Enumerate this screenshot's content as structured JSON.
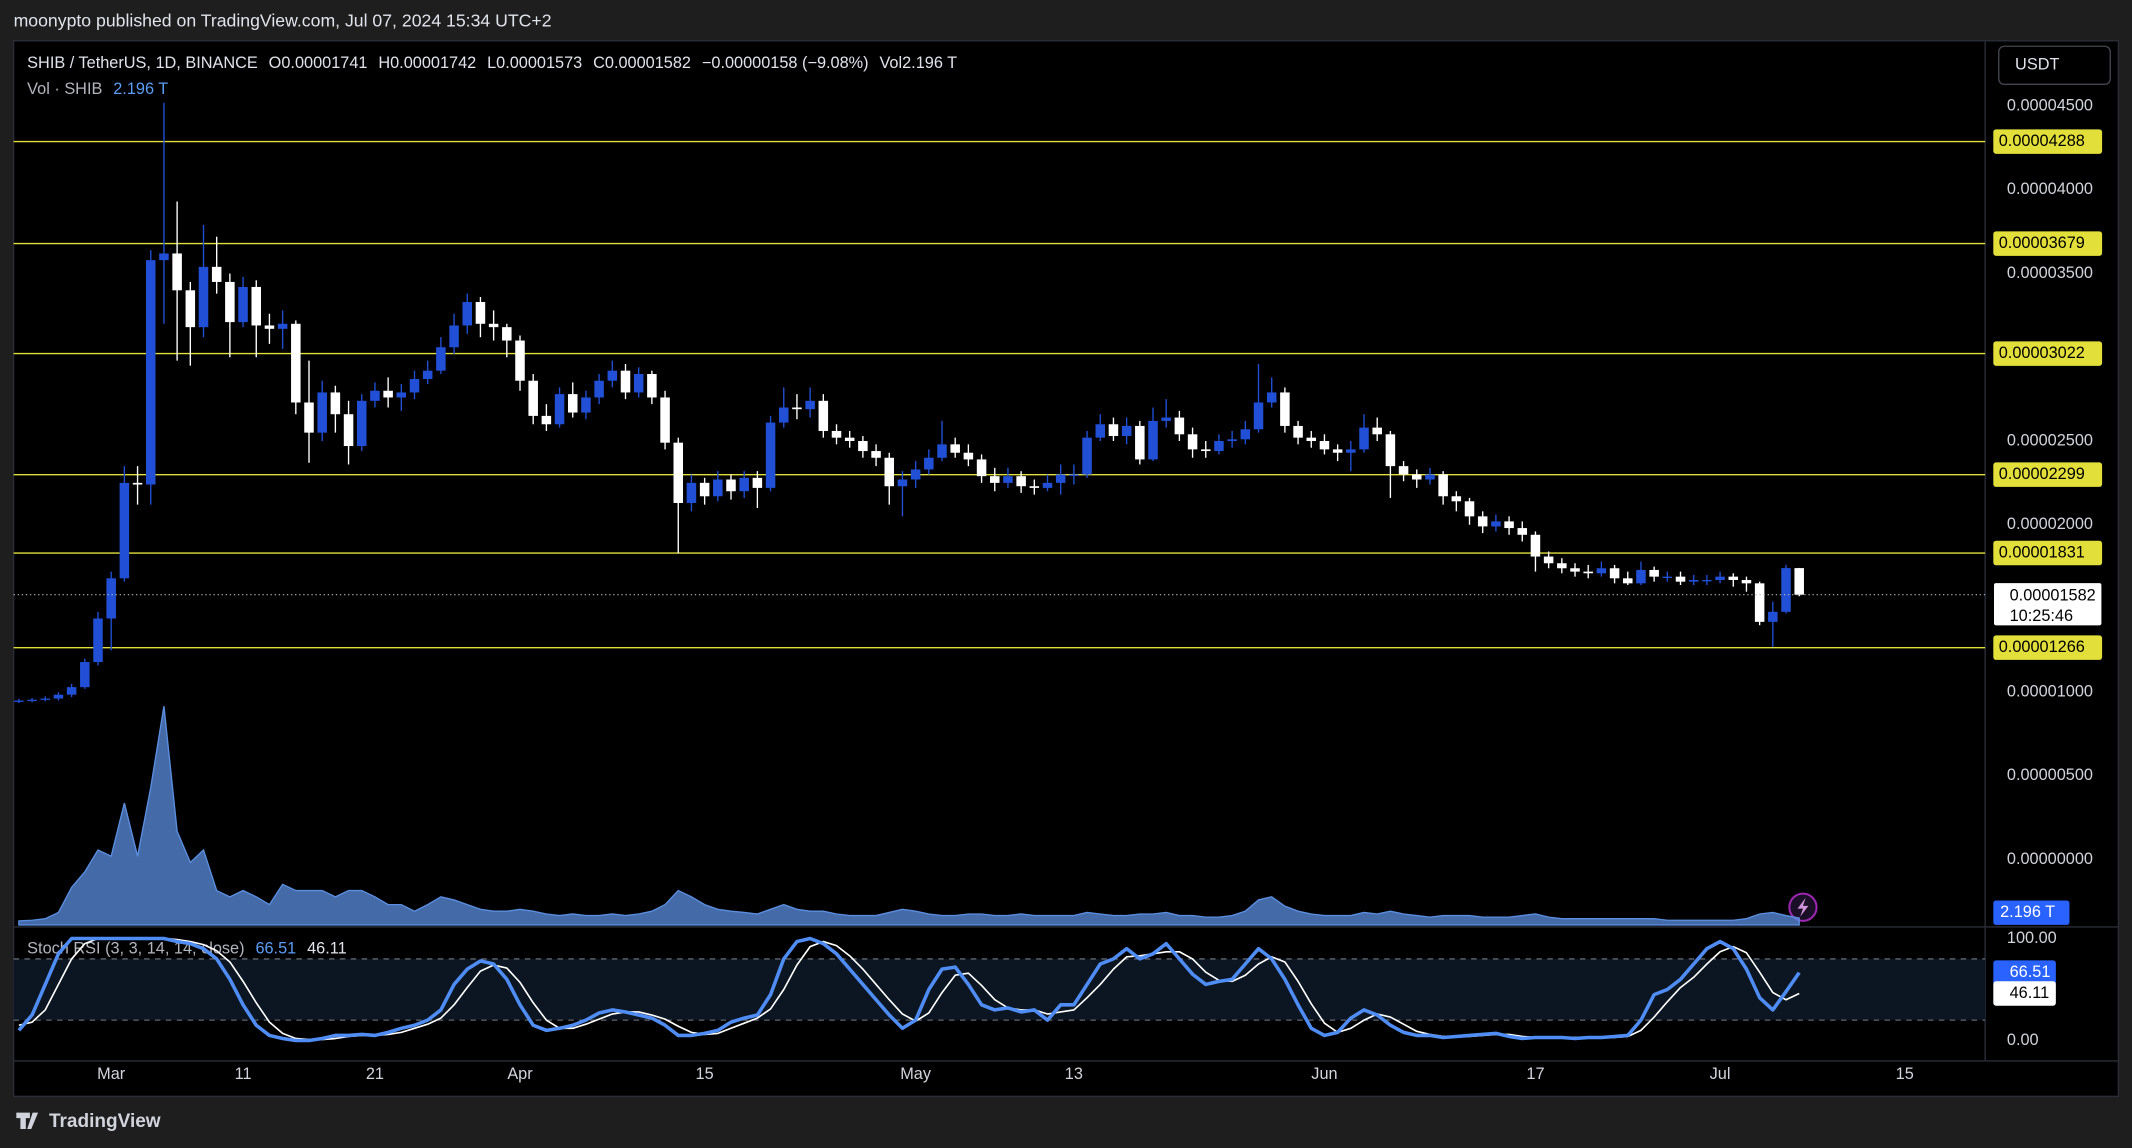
{
  "header": {
    "published": "moonypto published on TradingView.com, Jul 07, 2024 15:34 UTC+2",
    "brand": "TradingView"
  },
  "chart_data": {
    "type": "candlestick",
    "symbol": "SHIB / TetherUS, 1D, BINANCE",
    "legend": [
      {
        "key": "O",
        "value": "0.00001741"
      },
      {
        "key": "H",
        "value": "0.00001742"
      },
      {
        "key": "L",
        "value": "0.00001573"
      },
      {
        "key": "C",
        "value": "0.00001582"
      }
    ],
    "change": "−0.00000158 (−9.08%)",
    "vol_key": "Vol",
    "vol_value": "2.196 T",
    "currency": "USDT",
    "up_color": "#2150d6",
    "down_color": "#ffffff",
    "xlim": [
      -0.4,
      149.1
    ],
    "xticks": [
      {
        "value": 7,
        "label": "Mar"
      },
      {
        "value": 17,
        "label": "11"
      },
      {
        "value": 27,
        "label": "21"
      },
      {
        "value": 38,
        "label": "Apr"
      },
      {
        "value": 52,
        "label": "15"
      },
      {
        "value": 68,
        "label": "May"
      },
      {
        "value": 80,
        "label": "13"
      },
      {
        "value": 99,
        "label": "Jun"
      },
      {
        "value": 115,
        "label": "17"
      },
      {
        "value": 129,
        "label": "Jul"
      },
      {
        "value": 143,
        "label": "15"
      }
    ],
    "ylim": [
      -3.9e-06,
      4.89e-05
    ],
    "yticks": [
      {
        "value": 4.5e-05,
        "label": "0.00004500"
      },
      {
        "value": 4e-05,
        "label": "0.00004000"
      },
      {
        "value": 3.5e-05,
        "label": "0.00003500"
      },
      {
        "value": 2.5e-05,
        "label": "0.00002500"
      },
      {
        "value": 2e-05,
        "label": "0.00002000"
      },
      {
        "value": 1e-05,
        "label": "0.00001000"
      },
      {
        "value": 5e-06,
        "label": "0.00000500"
      },
      {
        "value": 0,
        "label": "0.00000000"
      }
    ],
    "levels": [
      4.288e-05,
      3.679e-05,
      3.022e-05,
      2.299e-05,
      1.831e-05,
      1.266e-05
    ],
    "level_color": "#e3df3a",
    "countdown": "10:25:46",
    "open": [
      9.45e-06,
      9.5e-06,
      9.55e-06,
      9.62e-06,
      9.85e-06,
      1.03e-05,
      1.18e-05,
      1.44e-05,
      1.68e-05,
      2.25e-05,
      2.24e-05,
      3.58e-05,
      3.62e-05,
      3.4e-05,
      3.18e-05,
      3.54e-05,
      3.45e-05,
      3.21e-05,
      3.42e-05,
      3.19e-05,
      3.17e-05,
      3.2e-05,
      2.73e-05,
      2.55e-05,
      2.79e-05,
      2.66e-05,
      2.47e-05,
      2.74e-05,
      2.8e-05,
      2.76e-05,
      2.79e-05,
      2.87e-05,
      2.92e-05,
      3.06e-05,
      3.19e-05,
      3.33e-05,
      3.2e-05,
      3.18e-05,
      3.1e-05,
      2.86e-05,
      2.65e-05,
      2.6e-05,
      2.78e-05,
      2.67e-05,
      2.76e-05,
      2.86e-05,
      2.92e-05,
      2.79e-05,
      2.9e-05,
      2.76e-05,
      2.49e-05,
      2.13e-05,
      2.25e-05,
      2.17e-05,
      2.27e-05,
      2.2e-05,
      2.28e-05,
      2.22e-05,
      2.61e-05,
      2.7e-05,
      2.69e-05,
      2.74e-05,
      2.56e-05,
      2.52e-05,
      2.5e-05,
      2.44e-05,
      2.4e-05,
      2.23e-05,
      2.27e-05,
      2.33e-05,
      2.4e-05,
      2.48e-05,
      2.43e-05,
      2.39e-05,
      2.29e-05,
      2.25e-05,
      2.29e-05,
      2.23e-05,
      2.22e-05,
      2.25e-05,
      2.3e-05,
      2.3e-05,
      2.52e-05,
      2.6e-05,
      2.53e-05,
      2.59e-05,
      2.39e-05,
      2.62e-05,
      2.64e-05,
      2.54e-05,
      2.45e-05,
      2.44e-05,
      2.5e-05,
      2.51e-05,
      2.57e-05,
      2.73e-05,
      2.79e-05,
      2.59e-05,
      2.52e-05,
      2.5e-05,
      2.45e-05,
      2.43e-05,
      2.45e-05,
      2.58e-05,
      2.54e-05,
      2.35e-05,
      2.3e-05,
      2.27e-05,
      2.3e-05,
      2.17e-05,
      2.14e-05,
      2.05e-05,
      1.99e-05,
      2.02e-05,
      1.98e-05,
      1.94e-05,
      1.81e-05,
      1.77e-05,
      1.74e-05,
      1.72e-05,
      1.71e-05,
      1.74e-05,
      1.68e-05,
      1.65e-05,
      1.73e-05,
      1.69e-05,
      1.69e-05,
      1.66e-05,
      1.67e-05,
      1.67e-05,
      1.69e-05,
      1.67e-05,
      1.65e-05,
      1.42e-05,
      1.48e-05,
      1.741e-05
    ],
    "high": [
      9.6e-06,
      9.65e-06,
      9.75e-06,
      1e-05,
      1.05e-05,
      1.2e-05,
      1.48e-05,
      1.72e-05,
      2.35e-05,
      2.35e-05,
      3.64e-05,
      4.52e-05,
      3.93e-05,
      3.45e-05,
      3.79e-05,
      3.72e-05,
      3.5e-05,
      3.48e-05,
      3.46e-05,
      3.26e-05,
      3.28e-05,
      3.22e-05,
      2.98e-05,
      2.86e-05,
      2.83e-05,
      2.74e-05,
      2.78e-05,
      2.85e-05,
      2.88e-05,
      2.84e-05,
      2.92e-05,
      2.98e-05,
      3.12e-05,
      3.26e-05,
      3.38e-05,
      3.36e-05,
      3.28e-05,
      3.2e-05,
      3.13e-05,
      2.9e-05,
      2.72e-05,
      2.82e-05,
      2.85e-05,
      2.8e-05,
      2.9e-05,
      2.98e-05,
      2.96e-05,
      2.94e-05,
      2.92e-05,
      2.8e-05,
      2.52e-05,
      2.3e-05,
      2.28e-05,
      2.32e-05,
      2.3e-05,
      2.32e-05,
      2.32e-05,
      2.65e-05,
      2.82e-05,
      2.78e-05,
      2.82e-05,
      2.78e-05,
      2.6e-05,
      2.56e-05,
      2.53e-05,
      2.48e-05,
      2.43e-05,
      2.32e-05,
      2.38e-05,
      2.45e-05,
      2.62e-05,
      2.52e-05,
      2.48e-05,
      2.42e-05,
      2.34e-05,
      2.34e-05,
      2.32e-05,
      2.27e-05,
      2.3e-05,
      2.36e-05,
      2.36e-05,
      2.56e-05,
      2.66e-05,
      2.64e-05,
      2.64e-05,
      2.62e-05,
      2.7e-05,
      2.75e-05,
      2.68e-05,
      2.58e-05,
      2.5e-05,
      2.54e-05,
      2.56e-05,
      2.62e-05,
      2.96e-05,
      2.88e-05,
      2.82e-05,
      2.62e-05,
      2.56e-05,
      2.54e-05,
      2.48e-05,
      2.5e-05,
      2.66e-05,
      2.64e-05,
      2.56e-05,
      2.38e-05,
      2.33e-05,
      2.34e-05,
      2.32e-05,
      2.2e-05,
      2.16e-05,
      2.08e-05,
      2.06e-05,
      2.05e-05,
      2.02e-05,
      1.96e-05,
      1.84e-05,
      1.8e-05,
      1.77e-05,
      1.76e-05,
      1.78e-05,
      1.76e-05,
      1.72e-05,
      1.78e-05,
      1.75e-05,
      1.72e-05,
      1.72e-05,
      1.7e-05,
      1.7e-05,
      1.72e-05,
      1.71e-05,
      1.69e-05,
      1.66e-05,
      1.54e-05,
      1.76e-05,
      1.742e-05
    ],
    "low": [
      9.35e-06,
      9.4e-06,
      9.45e-06,
      9.5e-06,
      9.7e-06,
      1.02e-05,
      1.16e-05,
      1.25e-05,
      1.66e-05,
      2.12e-05,
      2.12e-05,
      3.2e-05,
      2.98e-05,
      2.95e-05,
      3.12e-05,
      3.38e-05,
      3e-05,
      3.18e-05,
      3e-05,
      3.08e-05,
      3.05e-05,
      2.66e-05,
      2.37e-05,
      2.5e-05,
      2.55e-05,
      2.36e-05,
      2.44e-05,
      2.7e-05,
      2.7e-05,
      2.68e-05,
      2.75e-05,
      2.84e-05,
      2.9e-05,
      3.02e-05,
      3.14e-05,
      3.12e-05,
      3.1e-05,
      3e-05,
      2.8e-05,
      2.6e-05,
      2.56e-05,
      2.58e-05,
      2.64e-05,
      2.63e-05,
      2.72e-05,
      2.82e-05,
      2.75e-05,
      2.76e-05,
      2.72e-05,
      2.45e-05,
      1.83e-05,
      2.08e-05,
      2.12e-05,
      2.14e-05,
      2.15e-05,
      2.16e-05,
      2.1e-05,
      2.2e-05,
      2.58e-05,
      2.63e-05,
      2.64e-05,
      2.52e-05,
      2.48e-05,
      2.46e-05,
      2.4e-05,
      2.35e-05,
      2.12e-05,
      2.05e-05,
      2.22e-05,
      2.3e-05,
      2.38e-05,
      2.4e-05,
      2.35e-05,
      2.25e-05,
      2.2e-05,
      2.22e-05,
      2.19e-05,
      2.18e-05,
      2.2e-05,
      2.18e-05,
      2.24e-05,
      2.28e-05,
      2.5e-05,
      2.5e-05,
      2.48e-05,
      2.36e-05,
      2.38e-05,
      2.58e-05,
      2.5e-05,
      2.4e-05,
      2.4e-05,
      2.42e-05,
      2.46e-05,
      2.48e-05,
      2.55e-05,
      2.7e-05,
      2.55e-05,
      2.48e-05,
      2.46e-05,
      2.42e-05,
      2.38e-05,
      2.32e-05,
      2.43e-05,
      2.5e-05,
      2.16e-05,
      2.26e-05,
      2.22e-05,
      2.24e-05,
      2.12e-05,
      2.08e-05,
      2e-05,
      1.95e-05,
      1.96e-05,
      1.94e-05,
      1.9e-05,
      1.72e-05,
      1.74e-05,
      1.71e-05,
      1.69e-05,
      1.68e-05,
      1.69e-05,
      1.65e-05,
      1.64e-05,
      1.64e-05,
      1.66e-05,
      1.66e-05,
      1.64e-05,
      1.64e-05,
      1.64e-05,
      1.65e-05,
      1.63e-05,
      1.6e-05,
      1.4e-05,
      1.27e-05,
      1.47e-05,
      1.573e-05
    ],
    "close": [
      9.5e-06,
      9.55e-06,
      9.62e-06,
      9.85e-06,
      1.03e-05,
      1.18e-05,
      1.44e-05,
      1.68e-05,
      2.25e-05,
      2.24e-05,
      3.58e-05,
      3.62e-05,
      3.4e-05,
      3.18e-05,
      3.54e-05,
      3.45e-05,
      3.21e-05,
      3.42e-05,
      3.19e-05,
      3.17e-05,
      3.2e-05,
      2.73e-05,
      2.55e-05,
      2.79e-05,
      2.66e-05,
      2.47e-05,
      2.74e-05,
      2.8e-05,
      2.76e-05,
      2.79e-05,
      2.87e-05,
      2.92e-05,
      3.06e-05,
      3.19e-05,
      3.33e-05,
      3.2e-05,
      3.18e-05,
      3.1e-05,
      2.86e-05,
      2.65e-05,
      2.6e-05,
      2.78e-05,
      2.67e-05,
      2.76e-05,
      2.86e-05,
      2.92e-05,
      2.79e-05,
      2.9e-05,
      2.76e-05,
      2.49e-05,
      2.13e-05,
      2.25e-05,
      2.17e-05,
      2.27e-05,
      2.2e-05,
      2.28e-05,
      2.22e-05,
      2.61e-05,
      2.7e-05,
      2.69e-05,
      2.74e-05,
      2.56e-05,
      2.52e-05,
      2.5e-05,
      2.44e-05,
      2.4e-05,
      2.23e-05,
      2.27e-05,
      2.33e-05,
      2.4e-05,
      2.48e-05,
      2.43e-05,
      2.39e-05,
      2.29e-05,
      2.25e-05,
      2.29e-05,
      2.23e-05,
      2.22e-05,
      2.25e-05,
      2.3e-05,
      2.3e-05,
      2.52e-05,
      2.6e-05,
      2.53e-05,
      2.59e-05,
      2.39e-05,
      2.62e-05,
      2.64e-05,
      2.54e-05,
      2.45e-05,
      2.44e-05,
      2.5e-05,
      2.51e-05,
      2.57e-05,
      2.73e-05,
      2.79e-05,
      2.59e-05,
      2.52e-05,
      2.5e-05,
      2.45e-05,
      2.43e-05,
      2.45e-05,
      2.58e-05,
      2.54e-05,
      2.35e-05,
      2.3e-05,
      2.27e-05,
      2.3e-05,
      2.17e-05,
      2.14e-05,
      2.05e-05,
      1.99e-05,
      2.02e-05,
      1.98e-05,
      1.94e-05,
      1.81e-05,
      1.77e-05,
      1.74e-05,
      1.72e-05,
      1.71e-05,
      1.74e-05,
      1.68e-05,
      1.65e-05,
      1.73e-05,
      1.69e-05,
      1.69e-05,
      1.66e-05,
      1.67e-05,
      1.67e-05,
      1.69e-05,
      1.67e-05,
      1.65e-05,
      1.42e-05,
      1.48e-05,
      1.741e-05,
      1.582e-05
    ],
    "volume": {
      "name": "Vol · SHIB",
      "color": "#5b8ee0",
      "ylim": [
        0,
        283
      ],
      "last_label": "2.196 T",
      "values": [
        1.3,
        1.5,
        2,
        4,
        12,
        17,
        24,
        22,
        39,
        22,
        44,
        70,
        30,
        20,
        24,
        11,
        9,
        11,
        9,
        6.5,
        13,
        11,
        11,
        11,
        9,
        11,
        11,
        9,
        6.5,
        6.5,
        4.4,
        6.5,
        9,
        8,
        6.5,
        5,
        4.4,
        4.4,
        5,
        4.4,
        3.5,
        3,
        3.5,
        3,
        3,
        3.5,
        3,
        3.5,
        4.4,
        6.5,
        11,
        9,
        6.5,
        5,
        4.4,
        4,
        3.5,
        5,
        6.5,
        5,
        4.4,
        4.4,
        3.5,
        3,
        3,
        3,
        4,
        5,
        4.4,
        3.5,
        3,
        3,
        3.5,
        3.5,
        3,
        3,
        3.5,
        3,
        3,
        3,
        3,
        4,
        3.5,
        3,
        3,
        3.5,
        3.5,
        4,
        3,
        3,
        2.5,
        2.5,
        3,
        4.4,
        8,
        9,
        6,
        4.4,
        3.5,
        3,
        3,
        3,
        4,
        3.5,
        4.4,
        3.5,
        3,
        2.5,
        3,
        3,
        3,
        2.5,
        2.5,
        2.5,
        3,
        3.5,
        2.5,
        2,
        2,
        2,
        2,
        2,
        2,
        2,
        2,
        1.5,
        1.5,
        1.5,
        1.5,
        1.5,
        1.5,
        2,
        3.5,
        4,
        3,
        2.196
      ]
    },
    "stoch": {
      "title": "Stoch RSI (3, 3, 14, 14, close)",
      "ylim": [
        -20,
        109.3
      ],
      "yticks": [
        {
          "value": 100,
          "label": "100.00"
        },
        {
          "value": 0,
          "label": "0.00"
        }
      ],
      "bands": [
        80,
        20
      ],
      "series": [
        {
          "color": "#4f8df5",
          "values": [
            10,
            25,
            55,
            85,
            100,
            100,
            100,
            100,
            100,
            100,
            100,
            100,
            97,
            95,
            90,
            80,
            60,
            35,
            15,
            5,
            2,
            0,
            0,
            2,
            5,
            5,
            6,
            5,
            8,
            12,
            15,
            20,
            30,
            55,
            70,
            78,
            75,
            60,
            35,
            15,
            10,
            12,
            15,
            20,
            27,
            30,
            28,
            25,
            22,
            15,
            5,
            5,
            7,
            10,
            18,
            22,
            25,
            45,
            80,
            97,
            100,
            95,
            85,
            70,
            55,
            40,
            25,
            12,
            20,
            50,
            70,
            72,
            55,
            35,
            30,
            32,
            28,
            30,
            20,
            35,
            35,
            55,
            75,
            80,
            90,
            80,
            85,
            95,
            80,
            65,
            55,
            58,
            60,
            75,
            90,
            80,
            60,
            35,
            12,
            5,
            8,
            22,
            30,
            25,
            15,
            8,
            5,
            5,
            3,
            4,
            5,
            6,
            7,
            4,
            2,
            3,
            3,
            3,
            2,
            3,
            3,
            4,
            5,
            20,
            45,
            50,
            60,
            75,
            90,
            97,
            90,
            70,
            42,
            30,
            48,
            66.51
          ]
        },
        {
          "color": "#ffffff",
          "values": [
            15,
            18,
            30,
            55,
            80,
            95,
            100,
            100,
            100,
            100,
            100,
            100,
            99,
            97,
            94,
            88,
            77,
            58,
            37,
            18,
            7,
            2,
            1,
            1,
            2,
            4,
            5,
            5,
            6,
            8,
            12,
            16,
            22,
            35,
            52,
            68,
            74,
            71,
            57,
            37,
            20,
            12,
            12,
            16,
            21,
            26,
            28,
            28,
            25,
            21,
            14,
            8,
            6,
            7,
            12,
            17,
            22,
            31,
            50,
            74,
            92,
            97,
            93,
            83,
            70,
            55,
            40,
            26,
            19,
            27,
            47,
            64,
            66,
            54,
            40,
            32,
            30,
            30,
            26,
            28,
            30,
            42,
            55,
            70,
            82,
            83,
            85,
            87,
            87,
            80,
            67,
            59,
            58,
            64,
            75,
            82,
            77,
            58,
            36,
            17,
            8,
            12,
            20,
            26,
            23,
            16,
            9,
            6,
            4,
            4,
            4,
            5,
            6,
            6,
            4,
            3,
            3,
            3,
            3,
            3,
            3,
            3,
            4,
            10,
            23,
            38,
            52,
            62,
            75,
            87,
            92,
            86,
            67,
            47,
            40,
            46.11
          ]
        }
      ]
    }
  }
}
